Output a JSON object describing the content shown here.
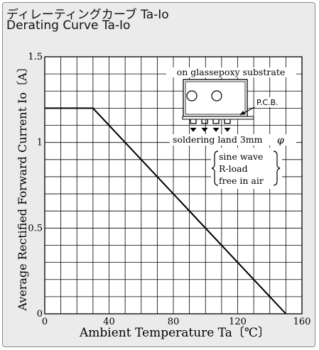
{
  "title_jp": "ディレーティングカーブ Ta-Io",
  "title_en": "Derating Curve Ta-Io",
  "colors": {
    "background": "#ebebeb",
    "plot": "#ffffff",
    "grid": "#000000",
    "curve": "#000000"
  },
  "chart_data": {
    "type": "line",
    "xlabel": "Ambient Temperature Ta〔℃〕",
    "ylabel": "Average Rectified Forward Current Io〔A〕",
    "xlim": [
      0,
      160
    ],
    "ylim": [
      0,
      1.5
    ],
    "x_ticks": [
      0,
      40,
      80,
      120,
      160
    ],
    "y_ticks": [
      0,
      0.5,
      1,
      1.5
    ],
    "x_tick_labels": [
      "0",
      "40",
      "80",
      "120",
      "160"
    ],
    "y_tick_labels": [
      "0",
      "0.5",
      "1",
      "1.5"
    ],
    "grid": true,
    "series": [
      {
        "x": [
          0,
          30,
          150
        ],
        "y": [
          1.2,
          1.2,
          0
        ]
      }
    ],
    "annotations": {
      "substrate": "on glassepoxy substrate",
      "pcb": "P.C.B.",
      "land": "soldering land 3mm",
      "phi": "φ",
      "condition_lines": [
        "sine wave",
        "R-load",
        "free in air"
      ]
    }
  }
}
